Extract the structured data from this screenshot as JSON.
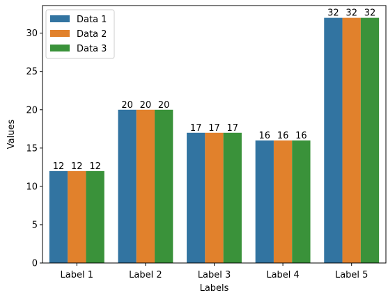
{
  "chart_data": {
    "type": "bar",
    "categories": [
      "Label 1",
      "Label 2",
      "Label 3",
      "Label 4",
      "Label 5"
    ],
    "series": [
      {
        "name": "Data 1",
        "values": [
          12,
          20,
          17,
          16,
          32
        ],
        "color": "#3274a1"
      },
      {
        "name": "Data 2",
        "values": [
          12,
          20,
          17,
          16,
          32
        ],
        "color": "#e1812c"
      },
      {
        "name": "Data 3",
        "values": [
          12,
          20,
          17,
          16,
          32
        ],
        "color": "#3a923a"
      }
    ],
    "title": "",
    "xlabel": "Labels",
    "ylabel": "Values",
    "ylim": [
      0,
      33.6
    ],
    "yticks": [
      0,
      5,
      10,
      15,
      20,
      25,
      30
    ],
    "legend": "top-left",
    "grid": false
  }
}
